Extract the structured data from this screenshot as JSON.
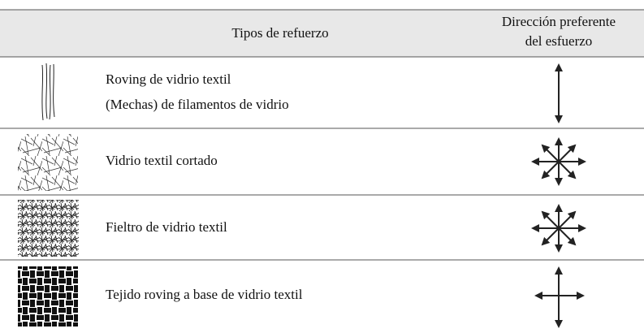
{
  "header": {
    "type_column": "Tipos de refuerzo",
    "direction_column": [
      "Dirección preferente",
      "del esfuerzo"
    ]
  },
  "rows": [
    {
      "lines": [
        "Roving de vidrio textil",
        "(Mechas) de filamentos de vidrio"
      ]
    },
    {
      "lines": [
        "Vidrio textil cortado"
      ]
    },
    {
      "lines": [
        "Fieltro de vidrio textil"
      ]
    },
    {
      "lines": [
        "Tejido roving a base de vidrio textil"
      ]
    }
  ]
}
